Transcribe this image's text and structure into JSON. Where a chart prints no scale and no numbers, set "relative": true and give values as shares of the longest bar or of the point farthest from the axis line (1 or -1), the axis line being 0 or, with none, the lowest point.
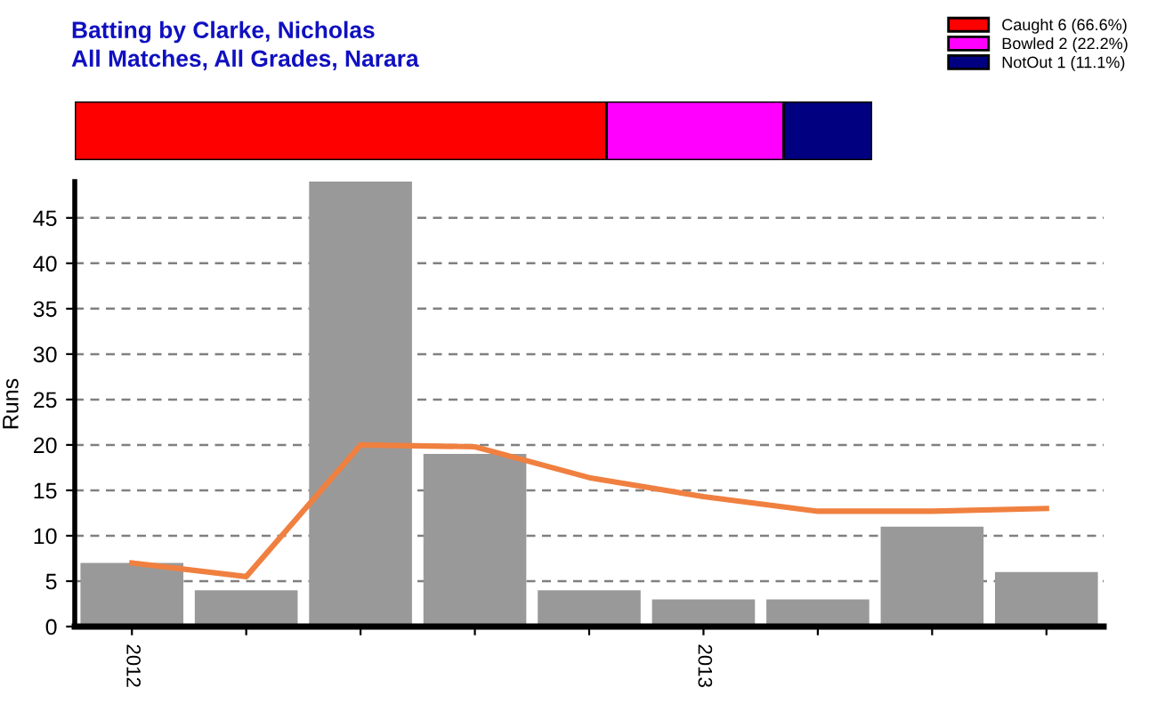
{
  "chart_data": [
    {
      "type": "bar",
      "title": "Batting by Clarke, Nicholas",
      "subtitle": "All Matches, All Grades, Narara",
      "orientation": "horizontal",
      "stacked": true,
      "relative": true,
      "categories": [
        null
      ],
      "legend": "top right",
      "series": [
        {
          "name": "Caught 6 (66.6%)",
          "color": "#ff0000",
          "values": [
            0.667
          ]
        },
        {
          "name": "Bowled 2 (22.2%)",
          "color": "#ff00ff",
          "values": [
            0.222
          ]
        },
        {
          "name": "NotOut 1 (11.1%)",
          "color": "#000080",
          "values": [
            0.111
          ]
        }
      ]
    },
    {
      "type": "bar",
      "ylabel": "Runs",
      "categories": [
        "2012",
        null,
        null,
        null,
        null,
        "2013",
        null,
        null,
        null
      ],
      "ylim": [
        0,
        49
      ],
      "yticks": [
        0,
        5,
        10,
        15,
        20,
        25,
        30,
        35,
        40,
        45
      ],
      "grid": "y",
      "series": [
        {
          "color": "#999999",
          "values": [
            7,
            4,
            49,
            19,
            4,
            3,
            3,
            11,
            6
          ]
        },
        {
          "type": "line",
          "color": "#f08040",
          "values": [
            7,
            5.5,
            20,
            19.8,
            16.4,
            14.3,
            12.7,
            12.7,
            13.0
          ]
        }
      ]
    }
  ]
}
